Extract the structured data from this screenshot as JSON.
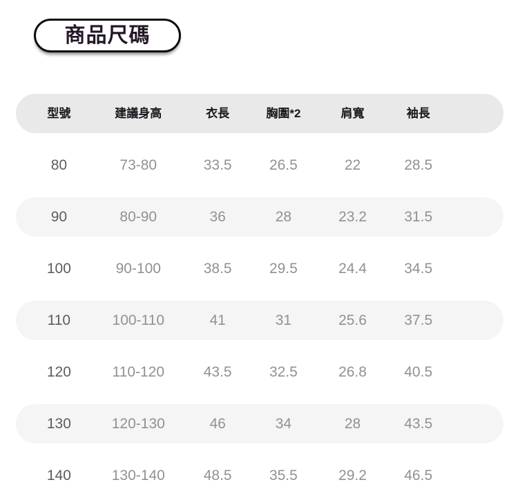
{
  "title_badge": {
    "label": "商品尺碼"
  },
  "chart_data": {
    "type": "table",
    "title": "商品尺碼",
    "headers": [
      "型號",
      "建議身高",
      "衣長",
      "胸圍*2",
      "肩寬",
      "袖長"
    ],
    "rows": [
      [
        "80",
        "73-80",
        "33.5",
        "26.5",
        "22",
        "28.5"
      ],
      [
        "90",
        "80-90",
        "36",
        "28",
        "23.2",
        "31.5"
      ],
      [
        "100",
        "90-100",
        "38.5",
        "29.5",
        "24.4",
        "34.5"
      ],
      [
        "110",
        "100-110",
        "41",
        "31",
        "25.6",
        "37.5"
      ],
      [
        "120",
        "110-120",
        "43.5",
        "32.5",
        "26.8",
        "40.5"
      ],
      [
        "130",
        "120-130",
        "46",
        "34",
        "28",
        "43.5"
      ],
      [
        "140",
        "130-140",
        "48.5",
        "35.5",
        "29.2",
        "46.5"
      ]
    ],
    "layout": {
      "zebra_striping": true,
      "shaded_row_indices": [
        1,
        3,
        5
      ],
      "alignment": "center"
    }
  },
  "colors": {
    "page_background": "#ffffff",
    "header_row_background": "#e9e9e9",
    "shaded_row_background": "#f5f5f6",
    "header_text": "#18181d",
    "model_column_text": "#5d5d5d",
    "cell_text": "#919191",
    "badge_border": "#0d0d0d",
    "badge_text": "#241728"
  }
}
